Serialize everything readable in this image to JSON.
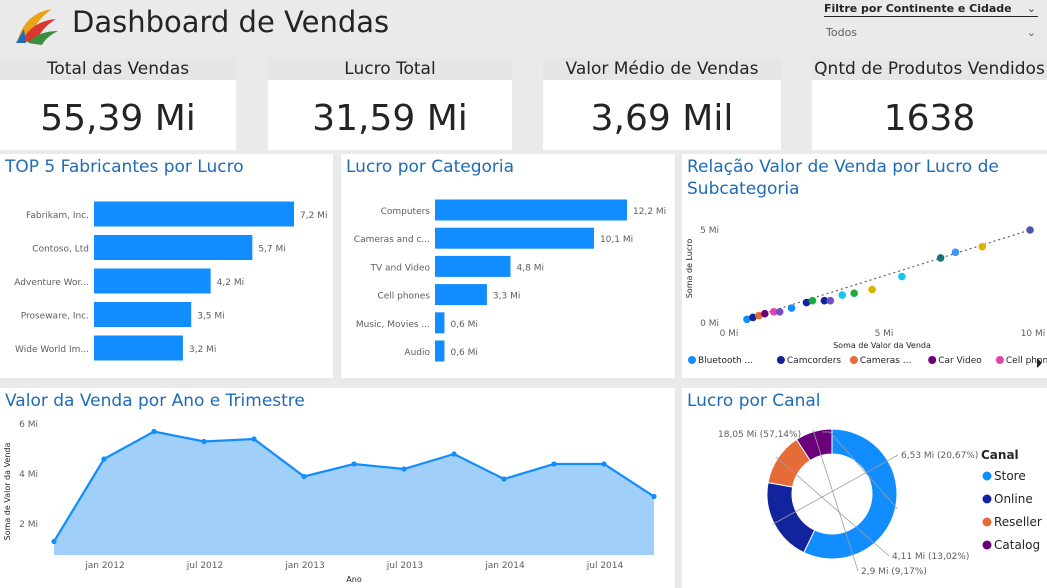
{
  "header": {
    "title": "Dashboard de Vendas",
    "filter_label": "Filtre por Continente e Cidade",
    "filter_value": "Todos"
  },
  "kpis": [
    {
      "label": "Total das Vendas",
      "value": "55,39 Mi"
    },
    {
      "label": "Lucro Total",
      "value": "31,59 Mi"
    },
    {
      "label": "Valor Médio de Vendas",
      "value": "3,69 Mil"
    },
    {
      "label": "Qntd de Produtos Vendidos",
      "value": "1638"
    }
  ],
  "panels": {
    "fabricantes_title": "TOP 5 Fabricantes por Lucro",
    "categoria_title": "Lucro por Categoria",
    "scatter_title_line1": "Relação Valor de Venda por Lucro de",
    "scatter_title_line2": "Subcategoria",
    "area_title": "Valor da Venda por Ano e Trimestre",
    "donut_title": "Lucro por Canal"
  },
  "colors": {
    "primary": "#118dff",
    "title_blue": "#1e6bb8",
    "area_fill": "#a0d0fa"
  },
  "chart_data": [
    {
      "id": "fabricantes",
      "type": "bar",
      "orientation": "horizontal",
      "categories": [
        "Fabrikam, Inc.",
        "Contoso, Ltd",
        "Adventure Wor...",
        "Proseware, Inc.",
        "Wide World Im..."
      ],
      "values": [
        7.2,
        5.7,
        4.2,
        3.5,
        3.2
      ],
      "data_labels": [
        "7,2 Mi",
        "5,7 Mi",
        "4,2 Mi",
        "3,5 Mi",
        "3,2 Mi"
      ],
      "title": "TOP 5 Fabricantes por Lucro"
    },
    {
      "id": "categoria",
      "type": "bar",
      "orientation": "horizontal",
      "categories": [
        "Computers",
        "Cameras and c...",
        "TV and Video",
        "Cell phones",
        "Music, Movies ...",
        "Audio"
      ],
      "values": [
        12.2,
        10.1,
        4.8,
        3.3,
        0.6,
        0.6
      ],
      "data_labels": [
        "12,2 Mi",
        "10,1 Mi",
        "4,8 Mi",
        "3,3 Mi",
        "0,6 Mi",
        "0,6 Mi"
      ],
      "title": "Lucro por Categoria"
    },
    {
      "id": "scatter",
      "type": "scatter",
      "title": "Relação Valor de Venda por Lucro de Subcategoria",
      "xlabel": "Soma de Valor da Venda",
      "ylabel": "Soma de Lucro",
      "x_ticks": [
        "0 Mi",
        "5 Mi",
        "10 Mi"
      ],
      "y_ticks": [
        "0 Mi",
        "5 Mi"
      ],
      "xlim": [
        0,
        10
      ],
      "ylim": [
        0,
        5
      ],
      "points": [
        {
          "x": 0.4,
          "y": 0.2,
          "color": "#118dff"
        },
        {
          "x": 0.6,
          "y": 0.3,
          "color": "#12239e"
        },
        {
          "x": 0.8,
          "y": 0.4,
          "color": "#e66c37"
        },
        {
          "x": 1.0,
          "y": 0.5,
          "color": "#6b007b"
        },
        {
          "x": 1.3,
          "y": 0.6,
          "color": "#e044a7"
        },
        {
          "x": 1.5,
          "y": 0.6,
          "color": "#744ec2"
        },
        {
          "x": 1.9,
          "y": 0.8,
          "color": "#118dff"
        },
        {
          "x": 2.4,
          "y": 1.1,
          "color": "#12239e"
        },
        {
          "x": 2.6,
          "y": 1.2,
          "color": "#1aab40"
        },
        {
          "x": 3.0,
          "y": 1.2,
          "color": "#12239e"
        },
        {
          "x": 3.2,
          "y": 1.2,
          "color": "#744ec2"
        },
        {
          "x": 3.6,
          "y": 1.5,
          "color": "#15c6f4"
        },
        {
          "x": 4.0,
          "y": 1.6,
          "color": "#1aab40"
        },
        {
          "x": 4.6,
          "y": 1.8,
          "color": "#d9b300"
        },
        {
          "x": 5.6,
          "y": 2.5,
          "color": "#15c6f4"
        },
        {
          "x": 6.9,
          "y": 3.5,
          "color": "#197278"
        },
        {
          "x": 7.4,
          "y": 3.8,
          "color": "#4092ff"
        },
        {
          "x": 8.3,
          "y": 4.1,
          "color": "#d9b300"
        },
        {
          "x": 9.9,
          "y": 5.0,
          "color": "#4a55ab"
        }
      ],
      "trendline": true,
      "legend": [
        {
          "name": "Bluetooth ...",
          "color": "#118dff"
        },
        {
          "name": "Camcorders",
          "color": "#12239e"
        },
        {
          "name": "Cameras ...",
          "color": "#e66c37"
        },
        {
          "name": "Car Video",
          "color": "#6b007b"
        },
        {
          "name": "Cell phones ...",
          "color": "#e044a7"
        }
      ],
      "legend_position": "bottom"
    },
    {
      "id": "area",
      "type": "area",
      "title": "Valor da Venda por Ano e Trimestre",
      "xlabel": "Ano",
      "ylabel": "Soma de Valor da Venda",
      "x": [
        "2011 Q4",
        "2012 Q1",
        "2012 Q2",
        "2012 Q3",
        "2012 Q4",
        "2013 Q1",
        "2013 Q2",
        "2013 Q3",
        "2013 Q4",
        "2014 Q1",
        "2014 Q2",
        "2014 Q3",
        "2014 Q4"
      ],
      "values": [
        1.3,
        4.6,
        5.7,
        5.3,
        5.4,
        3.9,
        4.4,
        4.2,
        4.8,
        3.8,
        4.4,
        4.4,
        3.1
      ],
      "x_ticks": [
        "jan 2012",
        "jul 2012",
        "jan 2013",
        "jul 2013",
        "jan 2014",
        "jul 2014"
      ],
      "y_ticks": [
        "2 Mi",
        "4 Mi",
        "6 Mi"
      ],
      "ylim": [
        1,
        6
      ]
    },
    {
      "id": "donut",
      "type": "pie",
      "title": "Lucro por Canal",
      "legend_title": "Canal",
      "slices": [
        {
          "name": "Store",
          "value": 18.05,
          "label": "18,05 Mi (57,14%)",
          "color": "#118dff"
        },
        {
          "name": "Online",
          "value": 6.53,
          "label": "6,53 Mi (20,67%)",
          "color": "#12239e"
        },
        {
          "name": "Reseller",
          "value": 4.11,
          "label": "4,11 Mi (13,02%)",
          "color": "#e66c37"
        },
        {
          "name": "Catalog",
          "value": 2.9,
          "label": "2,9 Mi (9,17%)",
          "color": "#6b007b"
        }
      ],
      "legend_position": "right"
    }
  ]
}
